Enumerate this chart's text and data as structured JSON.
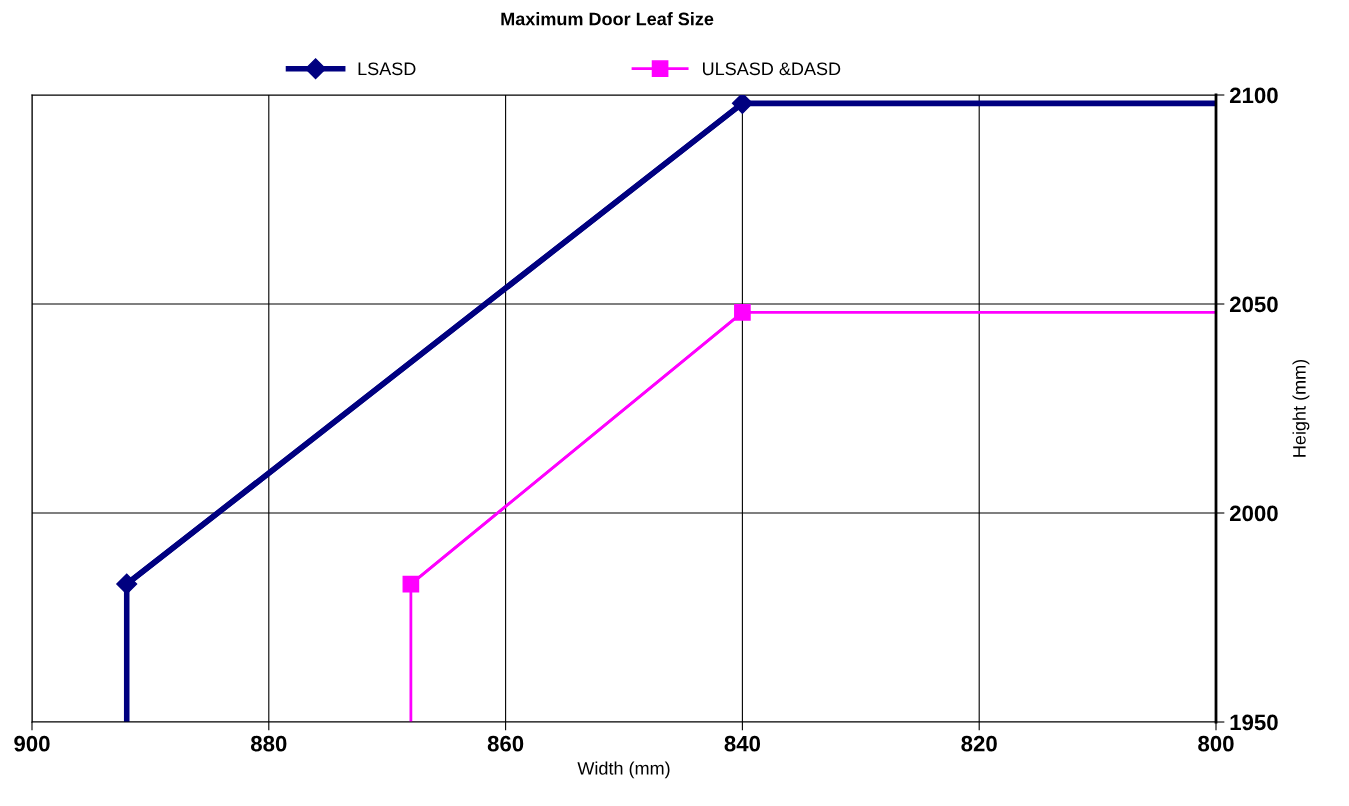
{
  "chart_data": {
    "type": "line",
    "title": "Maximum Door Leaf Size",
    "xlabel": "Width (mm)",
    "ylabel": "Height (mm)",
    "xlim": [
      900,
      800
    ],
    "xticks": [
      900,
      880,
      860,
      840,
      820,
      800
    ],
    "ylim": [
      1950,
      2100
    ],
    "yticks": [
      1950,
      2000,
      2050,
      2100
    ],
    "grid": true,
    "legend": "top",
    "line_style": "solid",
    "series": [
      {
        "name": "LSASD",
        "color": "#000080",
        "marker": "diamond",
        "x": [
          892,
          840
        ],
        "values": [
          1983,
          2098
        ]
      },
      {
        "name": "ULSASD &DASD",
        "color": "#ff00ff",
        "marker": "square",
        "x": [
          868,
          840
        ],
        "values": [
          1983,
          2048
        ]
      },
      {
        "color": "#000080",
        "marker": "none",
        "x": [
          892,
          892,
          840,
          800
        ],
        "values": [
          1950,
          1983,
          2098,
          2098
        ]
      },
      {
        "color": "#ff00ff",
        "marker": "none",
        "x": [
          868,
          868,
          840,
          800
        ],
        "values": [
          1950,
          1983,
          2048,
          2048
        ]
      }
    ]
  }
}
